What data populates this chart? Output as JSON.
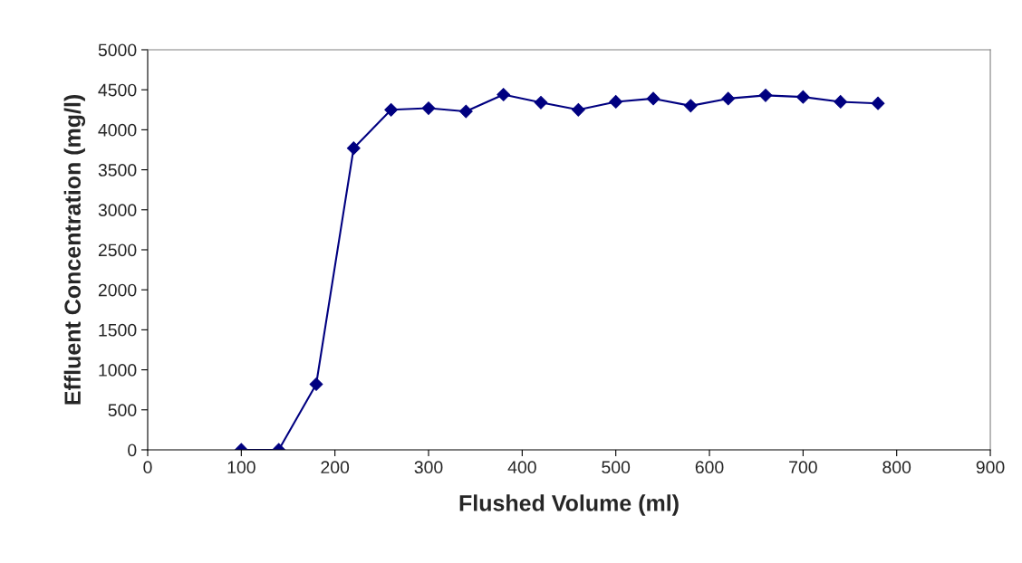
{
  "chart_data": {
    "type": "line",
    "xlabel": "Flushed Volume (ml)",
    "ylabel": "Effluent Concentration (mg/l)",
    "x": [
      100,
      140,
      180,
      220,
      260,
      300,
      340,
      380,
      420,
      460,
      500,
      540,
      580,
      620,
      660,
      700,
      740,
      780
    ],
    "series": [
      {
        "color": "#000080",
        "values": [
          0,
          0,
          820,
          3770,
          4250,
          4270,
          4230,
          4440,
          4340,
          4250,
          4350,
          4390,
          4300,
          4390,
          4430,
          4410,
          4350,
          4330
        ]
      }
    ],
    "xlim": [
      0,
      900
    ],
    "xticks": [
      0,
      100,
      200,
      300,
      400,
      500,
      600,
      700,
      800,
      900
    ],
    "ylim": [
      0,
      5000
    ],
    "yticks": [
      0,
      500,
      1000,
      1500,
      2000,
      2500,
      3000,
      3500,
      4000,
      4500,
      5000
    ],
    "grid": false,
    "marker": "diamond",
    "line_style": "solid"
  }
}
